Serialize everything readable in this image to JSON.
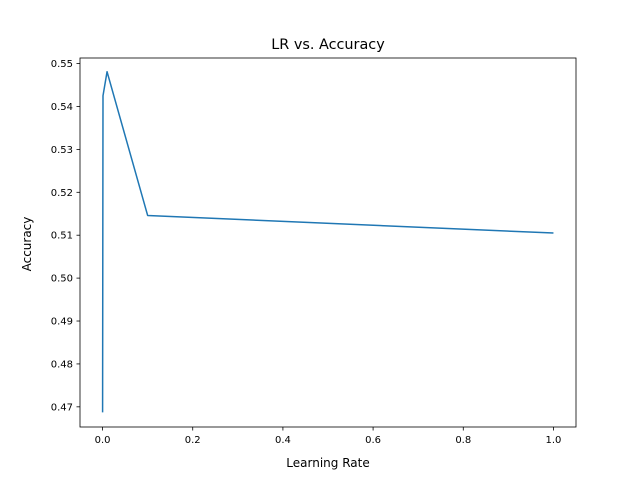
{
  "chart_data": {
    "type": "line",
    "title": "LR vs. Accuracy",
    "xlabel": "Learning Rate",
    "ylabel": "Accuracy",
    "xlim": [
      -0.05,
      1.05
    ],
    "ylim": [
      0.4653,
      0.5513
    ],
    "xticks": [
      0.0,
      0.2,
      0.4,
      0.6,
      0.8,
      1.0
    ],
    "xtick_labels": [
      "0.0",
      "0.2",
      "0.4",
      "0.6",
      "0.8",
      "1.0"
    ],
    "yticks": [
      0.47,
      0.48,
      0.49,
      0.5,
      0.51,
      0.52,
      0.53,
      0.54,
      0.55
    ],
    "ytick_labels": [
      "0.47",
      "0.48",
      "0.49",
      "0.50",
      "0.51",
      "0.52",
      "0.53",
      "0.54",
      "0.55"
    ],
    "grid": false,
    "series": [
      {
        "color": "#1f77b4",
        "x": [
          0.0001,
          0.001,
          0.01,
          0.1,
          1.0
        ],
        "y": [
          0.4687,
          0.5425,
          0.5481,
          0.5146,
          0.5105
        ]
      }
    ]
  }
}
